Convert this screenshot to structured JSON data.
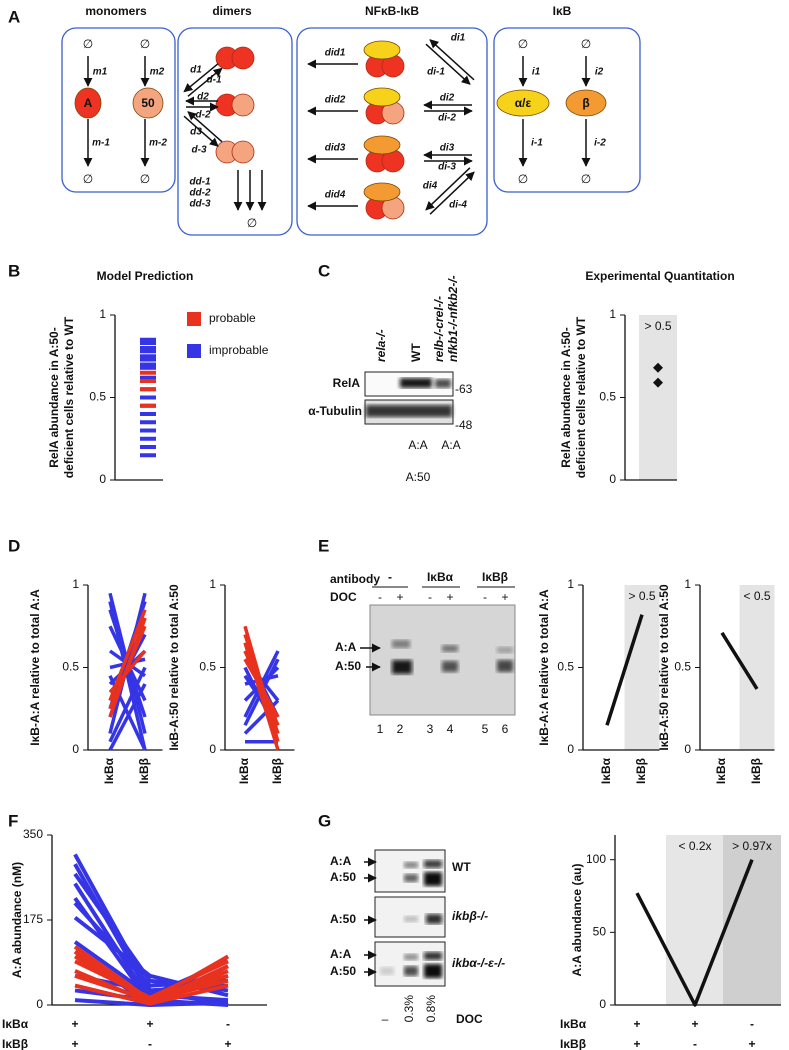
{
  "figure": {
    "panel_letters": [
      "A",
      "B",
      "C",
      "D",
      "E",
      "F",
      "G"
    ]
  },
  "diagram": {
    "titles": [
      "monomers",
      "dimers",
      "NFκB-IκB",
      "IκB"
    ],
    "null_symbol": "∅",
    "nodes": [
      "A",
      "50",
      "α/ε",
      "β"
    ],
    "rates": [
      "m1",
      "m2",
      "m-1",
      "m-2",
      "d1",
      "d-1",
      "d2",
      "d-2",
      "d3",
      "d-3",
      "dd-1",
      "dd-2",
      "dd-3",
      "did1",
      "did2",
      "did3",
      "did4",
      "di1",
      "di-1",
      "di2",
      "di-2",
      "di3",
      "di-3",
      "di4",
      "di-4",
      "i1",
      "i2",
      "i-1",
      "i-2"
    ]
  },
  "blots": {
    "C": {
      "columns": [
        "rela-/-",
        "WT",
        "relb-/-crel-/-",
        "nfkb1-/-nfkb2-/-"
      ],
      "rows": [
        "RelA",
        "α-Tubulin"
      ],
      "markers": [
        "-63",
        "-48"
      ],
      "species": [
        "A:A",
        "A:A",
        "A:50"
      ]
    },
    "E": {
      "antibody_label": "antibody",
      "antibodies": [
        "-",
        "IκBα",
        "IκBβ"
      ],
      "doc_label": "DOC",
      "doc": [
        "-",
        "+",
        "-",
        "+",
        "-",
        "+"
      ],
      "species": [
        "A:A",
        "A:50"
      ],
      "lanes": [
        "1",
        "2",
        "3",
        "4",
        "5",
        "6"
      ]
    },
    "G": {
      "species": [
        "A:A",
        "A:50",
        "A:50",
        "A:A",
        "A:50"
      ],
      "genotypes": [
        "WT",
        "ikbβ-/-",
        "ikbα-/-ε-/-"
      ],
      "doc": [
        "–",
        "0.3%",
        "0.8%"
      ],
      "doc_label": "DOC"
    }
  },
  "chart_data": [
    {
      "type": "strip",
      "title": "Model Prediction",
      "ylabel": [
        "RelA abundance in A:50-",
        "deficient cells relative to WT"
      ],
      "ylim": [
        0,
        1
      ],
      "yticks": [
        0,
        0.5,
        1
      ],
      "legend": "right",
      "series": [
        {
          "name": "improbable",
          "color": "#3535e6",
          "values": [
            0.85,
            0.83,
            0.8,
            0.78,
            0.75,
            0.73,
            0.7,
            0.68,
            0.62,
            0.55,
            0.5,
            0.45,
            0.4,
            0.35,
            0.3,
            0.25,
            0.2,
            0.15
          ]
        },
        {
          "name": "probable",
          "color": "#e8321e",
          "values": [
            0.65,
            0.6,
            0.55,
            0.45
          ]
        }
      ]
    },
    {
      "type": "strip",
      "title": "Experimental Quantitation",
      "ylabel": [
        "RelA abundance in A:50-",
        "deficient cells relative to WT"
      ],
      "ylim": [
        0,
        1
      ],
      "yticks": [
        0,
        0.5,
        1
      ],
      "marker": "diamond",
      "color": "#111111",
      "values": [
        0.68,
        0.59
      ],
      "shading": [
        {
          "color": "#e4e4e4",
          "label": "> 0.5"
        }
      ]
    },
    {
      "type": "line",
      "ylabel": [
        "IκB-A:A relative to total A:A"
      ],
      "ylim": [
        0,
        1
      ],
      "yticks": [
        0,
        0.5,
        1
      ],
      "categories": [
        "IκBα",
        "IκBβ"
      ],
      "series": [
        {
          "color": "#3535e6",
          "values": [
            0.95,
            0.1
          ]
        },
        {
          "color": "#3535e6",
          "values": [
            0.9,
            0.0
          ]
        },
        {
          "color": "#3535e6",
          "values": [
            0.85,
            0.2
          ]
        },
        {
          "color": "#3535e6",
          "values": [
            0.75,
            0.3
          ]
        },
        {
          "color": "#3535e6",
          "values": [
            0.6,
            0.45
          ]
        },
        {
          "color": "#3535e6",
          "values": [
            0.5,
            0.55
          ]
        },
        {
          "color": "#3535e6",
          "values": [
            0.4,
            0.6
          ]
        },
        {
          "color": "#3535e6",
          "values": [
            0.3,
            0.7
          ]
        },
        {
          "color": "#3535e6",
          "values": [
            0.2,
            0.8
          ]
        },
        {
          "color": "#3535e6",
          "values": [
            0.1,
            0.95
          ]
        },
        {
          "color": "#3535e6",
          "values": [
            0.05,
            0.5
          ]
        },
        {
          "color": "#3535e6",
          "values": [
            0.0,
            0.4
          ]
        },
        {
          "color": "#3535e6",
          "values": [
            0.25,
            0.9
          ]
        },
        {
          "color": "#3535e6",
          "values": [
            0.45,
            0.0
          ]
        },
        {
          "color": "#e8321e",
          "values": [
            0.2,
            0.8
          ]
        },
        {
          "color": "#e8321e",
          "values": [
            0.25,
            0.75
          ]
        },
        {
          "color": "#e8321e",
          "values": [
            0.3,
            0.85
          ]
        },
        {
          "color": "#e8321e",
          "values": [
            0.35,
            0.6
          ]
        }
      ]
    },
    {
      "type": "line",
      "ylabel": [
        "IκB-A:50 relative to total A:50"
      ],
      "ylim": [
        0,
        1
      ],
      "yticks": [
        0,
        0.5,
        1
      ],
      "categories": [
        "IκBα",
        "IκBβ"
      ],
      "series": [
        {
          "color": "#3535e6",
          "values": [
            0.6,
            0.2
          ]
        },
        {
          "color": "#3535e6",
          "values": [
            0.55,
            0.3
          ]
        },
        {
          "color": "#3535e6",
          "values": [
            0.5,
            0.1
          ]
        },
        {
          "color": "#3535e6",
          "values": [
            0.4,
            0.45
          ]
        },
        {
          "color": "#3535e6",
          "values": [
            0.3,
            0.5
          ]
        },
        {
          "color": "#3535e6",
          "values": [
            0.2,
            0.6
          ]
        },
        {
          "color": "#3535e6",
          "values": [
            0.1,
            0.3
          ]
        },
        {
          "color": "#3535e6",
          "values": [
            0.05,
            0.05
          ]
        },
        {
          "color": "#3535e6",
          "values": [
            0.15,
            0.55
          ]
        },
        {
          "color": "#3535e6",
          "values": [
            0.45,
            0.15
          ]
        },
        {
          "color": "#e8321e",
          "values": [
            0.75,
            0.05
          ]
        },
        {
          "color": "#e8321e",
          "values": [
            0.7,
            0.1
          ]
        },
        {
          "color": "#e8321e",
          "values": [
            0.65,
            0.0
          ]
        },
        {
          "color": "#e8321e",
          "values": [
            0.6,
            0.15
          ]
        },
        {
          "color": "#e8321e",
          "values": [
            0.55,
            0.2
          ]
        }
      ]
    },
    {
      "type": "line",
      "ylabel": [
        "IκB-A:A relative to total A:A"
      ],
      "ylim": [
        0,
        1
      ],
      "yticks": [
        0,
        0.5,
        1
      ],
      "categories": [
        "IκBα",
        "IκBβ"
      ],
      "color": "#111111",
      "values": [
        0.15,
        0.82
      ],
      "shading": [
        null,
        {
          "color": "#e4e4e4",
          "label": "> 0.5"
        }
      ]
    },
    {
      "type": "line",
      "ylabel": [
        "IκB-A:50 relative to total A:50"
      ],
      "ylim": [
        0,
        1
      ],
      "yticks": [
        0,
        0.5,
        1
      ],
      "categories": [
        "IκBα",
        "IκBβ"
      ],
      "color": "#111111",
      "values": [
        0.71,
        0.37
      ],
      "shading": [
        null,
        {
          "color": "#e4e4e4",
          "label": "< 0.5"
        }
      ]
    },
    {
      "type": "line",
      "ylabel": [
        "A:A abundance (nM)"
      ],
      "ylim": [
        0,
        350
      ],
      "yticks": [
        0,
        175,
        350
      ],
      "categories": [
        null,
        null,
        null
      ],
      "x_rows": [
        {
          "label": "IκBα",
          "values": [
            "+",
            "+",
            "-"
          ]
        },
        {
          "label": "IκBβ",
          "values": [
            "+",
            "-",
            "+"
          ]
        }
      ],
      "series": [
        {
          "color": "#3535e6",
          "values": [
            310,
            30,
            0
          ]
        },
        {
          "color": "#3535e6",
          "values": [
            290,
            20,
            10
          ]
        },
        {
          "color": "#3535e6",
          "values": [
            270,
            50,
            30
          ]
        },
        {
          "color": "#3535e6",
          "values": [
            250,
            10,
            60
          ]
        },
        {
          "color": "#3535e6",
          "values": [
            220,
            5,
            80
          ]
        },
        {
          "color": "#3535e6",
          "values": [
            210,
            40,
            50
          ]
        },
        {
          "color": "#3535e6",
          "values": [
            180,
            60,
            20
          ]
        },
        {
          "color": "#3535e6",
          "values": [
            130,
            20,
            90
          ]
        },
        {
          "color": "#3535e6",
          "values": [
            110,
            0,
            100
          ]
        },
        {
          "color": "#3535e6",
          "values": [
            60,
            30,
            40
          ]
        },
        {
          "color": "#3535e6",
          "values": [
            30,
            10,
            0
          ]
        },
        {
          "color": "#3535e6",
          "values": [
            10,
            0,
            5
          ]
        },
        {
          "color": "#e8321e",
          "values": [
            120,
            10,
            60
          ]
        },
        {
          "color": "#e8321e",
          "values": [
            110,
            5,
            80
          ]
        },
        {
          "color": "#e8321e",
          "values": [
            100,
            8,
            100
          ]
        },
        {
          "color": "#e8321e",
          "values": [
            90,
            15,
            90
          ]
        },
        {
          "color": "#e8321e",
          "values": [
            70,
            5,
            70
          ]
        },
        {
          "color": "#e8321e",
          "values": [
            60,
            10,
            50
          ]
        },
        {
          "color": "#e8321e",
          "values": [
            40,
            3,
            40
          ]
        }
      ]
    },
    {
      "type": "line",
      "ylabel": [
        "A:A abundance (au)"
      ],
      "ylim": [
        0,
        117
      ],
      "yticks": [
        0,
        50,
        100
      ],
      "categories": [
        null,
        null,
        null
      ],
      "color": "#111111",
      "x_rows": [
        {
          "label": "IκBα",
          "values": [
            "+",
            "+",
            "-"
          ]
        },
        {
          "label": "IκBβ",
          "values": [
            "+",
            "-",
            "+"
          ]
        }
      ],
      "values": [
        77,
        0,
        100
      ],
      "shading": [
        null,
        {
          "color": "#e6e6e6",
          "label": "< 0.2x"
        },
        {
          "color": "#cfcfcf",
          "label": "> 0.97x"
        }
      ]
    }
  ]
}
